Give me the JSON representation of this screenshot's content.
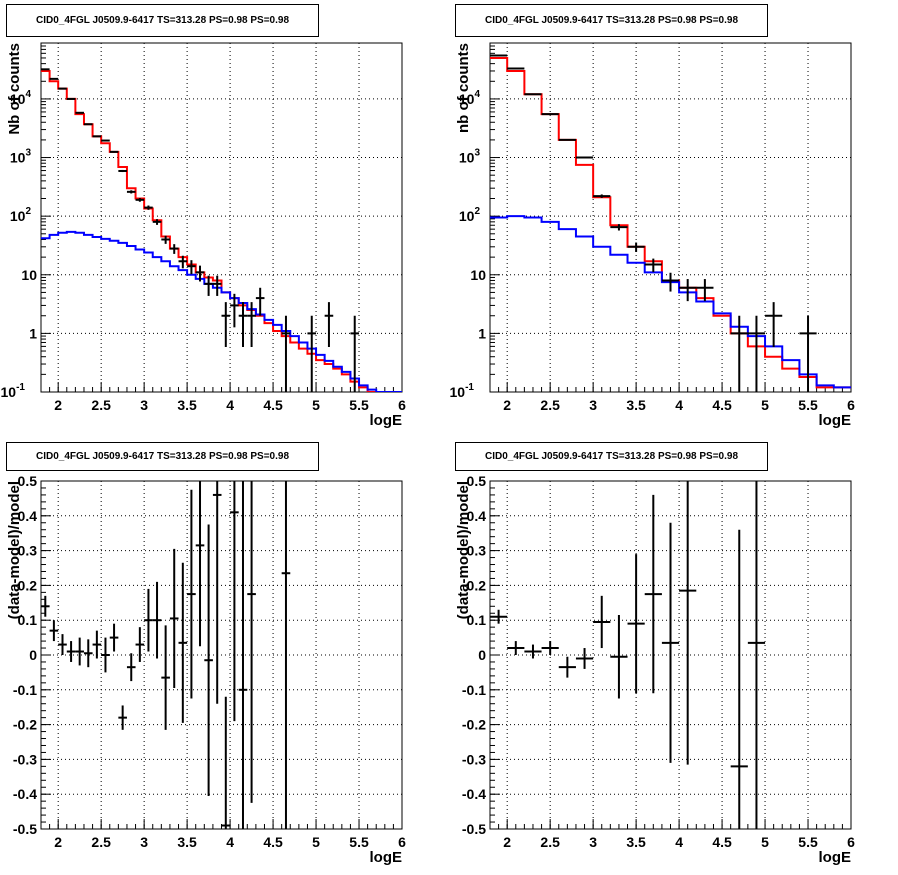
{
  "colors": {
    "data": "#000000",
    "total_model": "#ff0000",
    "background_model": "#0000ff",
    "grid": "#000000"
  },
  "chart_data": [
    {
      "type": "line",
      "panel": "top-left",
      "title": "CID0_4FGL J0509.9-6417 TS=313.28 PS=0.98 PS=0.98",
      "xlabel": "logE",
      "ylabel": "Nb of counts",
      "log_y": true,
      "grid": true,
      "xlim": [
        1.8,
        6.0
      ],
      "ylim": [
        0.1,
        90000
      ],
      "x_ticks": [
        "2",
        "2.5",
        "3",
        "3.5",
        "4",
        "4.5",
        "5",
        "5.5",
        "6"
      ],
      "y_ticks": [
        "10^-1",
        "1",
        "10",
        "10^2",
        "10^3",
        "10^4"
      ],
      "bin_edges": [
        1.8,
        1.9,
        2.0,
        2.1,
        2.2,
        2.3,
        2.4,
        2.5,
        2.6,
        2.7,
        2.8,
        2.9,
        3.0,
        3.1,
        3.2,
        3.3,
        3.4,
        3.5,
        3.6,
        3.7,
        3.8,
        3.9,
        4.0,
        4.1,
        4.2,
        4.3,
        4.4,
        4.5,
        4.6,
        4.7,
        4.8,
        4.9,
        5.0,
        5.1,
        5.2,
        5.3,
        5.4,
        5.5,
        5.6,
        5.7,
        5.8,
        5.9,
        6.0
      ],
      "series": [
        {
          "name": "data",
          "kind": "points",
          "x": [
            1.85,
            1.95,
            2.05,
            2.15,
            2.25,
            2.35,
            2.45,
            2.55,
            2.65,
            2.75,
            2.85,
            2.95,
            3.05,
            3.15,
            3.25,
            3.35,
            3.45,
            3.55,
            3.65,
            3.75,
            3.85,
            3.95,
            4.05,
            4.15,
            4.25,
            4.35,
            4.65,
            4.95,
            5.15,
            5.45
          ],
          "y": [
            32000,
            22000,
            15000,
            10000,
            5800,
            3700,
            2300,
            1950,
            1250,
            590,
            260,
            190,
            140,
            80,
            40,
            28,
            17,
            14,
            11,
            7,
            7,
            2,
            3,
            2,
            2,
            4,
            1,
            1,
            2,
            1
          ],
          "xerr": 0.05
        },
        {
          "name": "total model",
          "kind": "step",
          "values": [
            30000,
            20000,
            15000,
            10000,
            5500,
            3700,
            2300,
            1750,
            1250,
            690,
            300,
            200,
            135,
            85,
            45,
            28,
            20,
            15,
            11,
            9,
            8,
            5,
            4,
            3,
            2.5,
            2,
            1.5,
            1.1,
            0.9,
            0.7,
            0.55,
            0.45,
            0.35,
            0.3,
            0.25,
            0.2,
            0.15,
            0.12,
            0.1,
            0.1,
            0.1,
            0.1
          ]
        },
        {
          "name": "background model",
          "kind": "step",
          "values": [
            42,
            48,
            52,
            54,
            52,
            48,
            44,
            41,
            38,
            35,
            31,
            27,
            24,
            20,
            17,
            14,
            12,
            10,
            8.5,
            7,
            6,
            5,
            4,
            3.3,
            2.6,
            2.1,
            1.7,
            1.4,
            1.1,
            0.9,
            0.7,
            0.55,
            0.43,
            0.34,
            0.27,
            0.22,
            0.17,
            0.13,
            0.11,
            0.1,
            0.1,
            0.1
          ]
        }
      ]
    },
    {
      "type": "line",
      "panel": "top-right",
      "title": "CID0_4FGL J0509.9-6417 TS=313.28 PS=0.98 PS=0.98",
      "xlabel": "logE",
      "ylabel": "nb of counts",
      "log_y": true,
      "grid": true,
      "xlim": [
        1.8,
        6.0
      ],
      "ylim": [
        0.1,
        90000
      ],
      "x_ticks": [
        "2",
        "2.5",
        "3",
        "3.5",
        "4",
        "4.5",
        "5",
        "5.5",
        "6"
      ],
      "y_ticks": [
        "10^-1",
        "1",
        "10",
        "10^2",
        "10^3",
        "10^4"
      ],
      "bin_edges": [
        1.8,
        2.0,
        2.2,
        2.4,
        2.6,
        2.8,
        3.0,
        3.2,
        3.4,
        3.6,
        3.8,
        4.0,
        4.2,
        4.4,
        4.6,
        4.8,
        5.0,
        5.2,
        5.4,
        5.6,
        5.8,
        6.0
      ],
      "series": [
        {
          "name": "data",
          "kind": "points",
          "x": [
            1.9,
            2.1,
            2.3,
            2.5,
            2.7,
            2.9,
            3.1,
            3.3,
            3.5,
            3.7,
            3.9,
            4.1,
            4.3,
            4.7,
            4.9,
            5.1,
            5.5
          ],
          "y": [
            55000,
            33000,
            12000,
            5500,
            2000,
            1000,
            220,
            65,
            30,
            15,
            8,
            6,
            6,
            1,
            1,
            2,
            1
          ],
          "xerr": 0.1
        },
        {
          "name": "total model",
          "kind": "step",
          "values": [
            50000,
            30000,
            12000,
            5500,
            2000,
            750,
            210,
            70,
            30,
            17,
            8,
            6,
            4,
            2,
            1,
            0.6,
            0.4,
            0.25,
            0.18,
            0.12,
            0.12
          ]
        },
        {
          "name": "background model",
          "kind": "step",
          "values": [
            95,
            100,
            95,
            80,
            60,
            45,
            30,
            22,
            16,
            11,
            7.5,
            5,
            3.5,
            2.2,
            1.3,
            0.9,
            0.6,
            0.35,
            0.2,
            0.13,
            0.12
          ]
        }
      ]
    },
    {
      "type": "scatter",
      "panel": "bottom-left",
      "title": "CID0_4FGL J0509.9-6417 TS=313.28 PS=0.98 PS=0.98",
      "xlabel": "logE",
      "ylabel": "(data-model)/model",
      "grid": true,
      "xlim": [
        1.8,
        6.0
      ],
      "ylim": [
        -0.5,
        0.5
      ],
      "x_ticks": [
        "2",
        "2.5",
        "3",
        "3.5",
        "4",
        "4.5",
        "5",
        "5.5",
        "6"
      ],
      "y_ticks": [
        "-0.5",
        "-0.4",
        "-0.3",
        "-0.2",
        "-0.1",
        "0",
        "0.1",
        "0.2",
        "0.3",
        "0.4",
        "0.5"
      ],
      "series": [
        {
          "name": "residuals",
          "kind": "points",
          "x": [
            1.85,
            1.95,
            2.05,
            2.15,
            2.25,
            2.35,
            2.45,
            2.55,
            2.65,
            2.75,
            2.85,
            2.95,
            3.05,
            3.15,
            3.25,
            3.35,
            3.45,
            3.55,
            3.65,
            3.75,
            3.85,
            3.95,
            4.05,
            4.15,
            4.25,
            4.65
          ],
          "y": [
            0.14,
            0.07,
            0.03,
            0.01,
            0.01,
            0.005,
            0.03,
            0.0,
            0.05,
            -0.18,
            -0.035,
            0.03,
            0.1,
            0.1,
            -0.065,
            0.105,
            0.035,
            0.175,
            0.315,
            -0.015,
            0.46,
            -0.49,
            0.41,
            -0.1,
            0.175,
            0.235
          ],
          "yerr": [
            0.03,
            0.03,
            0.03,
            0.03,
            0.04,
            0.04,
            0.04,
            0.05,
            0.04,
            0.035,
            0.04,
            0.05,
            0.09,
            0.11,
            0.15,
            0.2,
            0.23,
            0.3,
            0.29,
            0.39,
            0.6,
            0.37,
            0.6,
            0.6,
            0.6,
            0.8
          ],
          "xerr": 0.05
        }
      ]
    },
    {
      "type": "scatter",
      "panel": "bottom-right",
      "title": "CID0_4FGL J0509.9-6417 TS=313.28 PS=0.98 PS=0.98",
      "xlabel": "logE",
      "ylabel": "(data-model)/model",
      "grid": true,
      "xlim": [
        1.8,
        6.0
      ],
      "ylim": [
        -0.5,
        0.5
      ],
      "x_ticks": [
        "2",
        "2.5",
        "3",
        "3.5",
        "4",
        "4.5",
        "5",
        "5.5",
        "6"
      ],
      "y_ticks": [
        "-0.5",
        "-0.4",
        "-0.3",
        "-0.2",
        "-0.1",
        "0",
        "0.1",
        "0.2",
        "0.3",
        "0.4",
        "0.5"
      ],
      "series": [
        {
          "name": "residuals",
          "kind": "points",
          "x": [
            1.9,
            2.1,
            2.3,
            2.5,
            2.7,
            2.9,
            3.1,
            3.3,
            3.5,
            3.7,
            3.9,
            4.1,
            4.7,
            4.9
          ],
          "y": [
            0.11,
            0.02,
            0.01,
            0.02,
            -0.035,
            -0.01,
            0.095,
            -0.005,
            0.09,
            0.175,
            0.035,
            0.185,
            -0.32,
            0.035
          ],
          "yerr": [
            0.02,
            0.02,
            0.02,
            0.02,
            0.03,
            0.03,
            0.075,
            0.12,
            0.2,
            0.285,
            0.345,
            0.5,
            0.68,
            0.6
          ],
          "xerr": 0.1
        }
      ]
    }
  ]
}
